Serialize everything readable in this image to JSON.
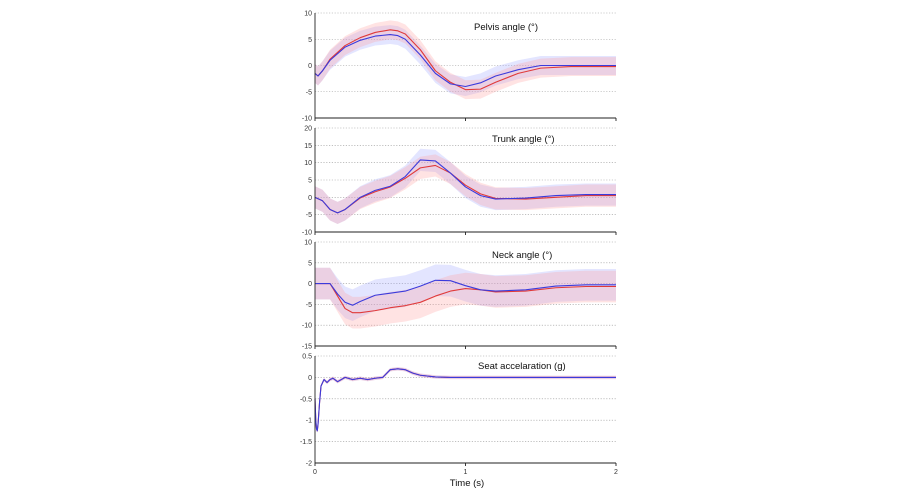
{
  "chart_data": {
    "type": "line",
    "xlabel": "Time (s)",
    "xlim": [
      0,
      2
    ],
    "xticks": [
      "0",
      "1",
      "2"
    ],
    "colors": {
      "blue": "#3b3bdc",
      "red": "#e03a3a",
      "blue_band": "#9aa3ff",
      "red_band": "#ff9c9c",
      "grid": "#9a9a9a",
      "axis": "#222222"
    },
    "panels": [
      {
        "title": "Pelvis angle (°)",
        "ylim": [
          -10,
          10
        ],
        "yticks": [
          "-10",
          "-5",
          "0",
          "5",
          "10"
        ],
        "yvals": [
          -10,
          -5,
          0,
          5,
          10
        ],
        "band": 1.8,
        "series": [
          {
            "color_key": "blue",
            "x": [
              0,
              0.02,
              0.05,
              0.1,
              0.2,
              0.3,
              0.4,
              0.5,
              0.55,
              0.6,
              0.7,
              0.8,
              0.9,
              1.0,
              1.1,
              1.2,
              1.35,
              1.5,
              1.7,
              2.0
            ],
            "y": [
              -1.5,
              -2.0,
              -1.0,
              1.0,
              3.5,
              4.8,
              5.6,
              5.9,
              5.7,
              5.0,
              2.0,
              -1.5,
              -3.5,
              -4.0,
              -3.3,
              -2.0,
              -0.8,
              0.0,
              0.0,
              0.0
            ]
          },
          {
            "color_key": "red",
            "x": [
              0,
              0.02,
              0.05,
              0.1,
              0.2,
              0.3,
              0.4,
              0.5,
              0.55,
              0.6,
              0.7,
              0.8,
              0.9,
              1.0,
              1.1,
              1.2,
              1.35,
              1.5,
              1.7,
              2.0
            ],
            "y": [
              -1.5,
              -2.0,
              -1.0,
              1.2,
              3.8,
              5.3,
              6.3,
              6.8,
              6.6,
              6.0,
              3.0,
              -1.0,
              -3.2,
              -4.6,
              -4.5,
              -3.2,
              -1.5,
              -0.5,
              -0.2,
              -0.2
            ]
          }
        ]
      },
      {
        "title": "Trunk angle (°)",
        "ylim": [
          -10,
          20
        ],
        "yticks": [
          "-10",
          "-5",
          "0",
          "5",
          "10",
          "15",
          "20"
        ],
        "yvals": [
          -10,
          -5,
          0,
          5,
          10,
          15,
          20
        ],
        "band": 3.2,
        "series": [
          {
            "color_key": "blue",
            "x": [
              0,
              0.05,
              0.1,
              0.15,
              0.2,
              0.3,
              0.4,
              0.5,
              0.6,
              0.7,
              0.8,
              0.9,
              1.0,
              1.1,
              1.2,
              1.4,
              1.6,
              1.8,
              2.0
            ],
            "y": [
              0,
              -1.0,
              -3.5,
              -4.5,
              -3.5,
              0,
              2.0,
              3.2,
              6.0,
              10.8,
              10.5,
              7.0,
              3.0,
              0.5,
              -0.5,
              -0.2,
              0.5,
              0.8,
              0.8
            ]
          },
          {
            "color_key": "red",
            "x": [
              0,
              0.05,
              0.1,
              0.15,
              0.2,
              0.3,
              0.4,
              0.5,
              0.6,
              0.7,
              0.8,
              0.9,
              1.0,
              1.1,
              1.2,
              1.4,
              1.6,
              1.8,
              2.0
            ],
            "y": [
              0,
              -1.0,
              -3.5,
              -4.5,
              -3.5,
              -0.2,
              1.6,
              3.0,
              5.5,
              8.5,
              9.2,
              7.0,
              3.5,
              1.0,
              -0.3,
              -0.5,
              0.0,
              0.5,
              0.5
            ]
          }
        ]
      },
      {
        "title": "Neck angle (°)",
        "ylim": [
          -15,
          10
        ],
        "yticks": [
          "-15",
          "-10",
          "-5",
          "0",
          "5",
          "10"
        ],
        "yvals": [
          -15,
          -10,
          -5,
          0,
          5,
          10
        ],
        "band": 3.8,
        "series": [
          {
            "color_key": "blue",
            "x": [
              0,
              0.1,
              0.15,
              0.2,
              0.25,
              0.3,
              0.4,
              0.5,
              0.6,
              0.7,
              0.8,
              0.9,
              1.0,
              1.1,
              1.2,
              1.4,
              1.6,
              1.8,
              2.0
            ],
            "y": [
              0,
              0,
              -2.5,
              -4.5,
              -5.2,
              -4.3,
              -2.8,
              -2.3,
              -1.8,
              -0.6,
              0.8,
              0.7,
              -0.5,
              -1.5,
              -1.8,
              -1.5,
              -0.6,
              -0.3,
              -0.3
            ]
          },
          {
            "color_key": "red",
            "x": [
              0,
              0.1,
              0.15,
              0.2,
              0.25,
              0.3,
              0.4,
              0.5,
              0.6,
              0.7,
              0.8,
              0.9,
              1.0,
              1.1,
              1.2,
              1.4,
              1.6,
              1.8,
              2.0
            ],
            "y": [
              0,
              0,
              -3.0,
              -6.0,
              -7.0,
              -7.0,
              -6.5,
              -5.8,
              -5.3,
              -4.5,
              -3.0,
              -1.8,
              -1.2,
              -1.5,
              -2.0,
              -1.8,
              -1.0,
              -0.7,
              -0.7
            ]
          }
        ]
      },
      {
        "title": "Seat accelaration (g)",
        "ylim": [
          -2,
          0.5
        ],
        "yticks": [
          "-2",
          "-1.5",
          "-1",
          "-0.5",
          "0",
          "0.5"
        ],
        "yvals": [
          -2,
          -1.5,
          -1,
          -0.5,
          0,
          0.5
        ],
        "band": 0.04,
        "series": [
          {
            "color_key": "blue",
            "x": [
              0,
              0.005,
              0.01,
              0.015,
              0.02,
              0.03,
              0.04,
              0.06,
              0.08,
              0.1,
              0.12,
              0.15,
              0.2,
              0.25,
              0.3,
              0.35,
              0.4,
              0.45,
              0.5,
              0.55,
              0.6,
              0.65,
              0.7,
              0.8,
              0.9,
              1.0,
              1.5,
              2.0
            ],
            "y": [
              -0.5,
              -1.0,
              -1.2,
              -1.25,
              -1.1,
              -0.6,
              -0.2,
              -0.05,
              -0.12,
              -0.05,
              -0.02,
              -0.1,
              0.0,
              -0.05,
              -0.02,
              -0.05,
              -0.02,
              0.0,
              0.18,
              0.2,
              0.18,
              0.1,
              0.05,
              0.01,
              0.0,
              0.0,
              0.0,
              0.0
            ]
          },
          {
            "color_key": "red",
            "x": [
              0,
              0.005,
              0.01,
              0.015,
              0.02,
              0.03,
              0.04,
              0.06,
              0.08,
              0.1,
              0.12,
              0.15,
              0.2,
              0.25,
              0.3,
              0.35,
              0.4,
              0.45,
              0.5,
              0.55,
              0.6,
              0.65,
              0.7,
              0.8,
              0.9,
              1.0,
              1.5,
              2.0
            ],
            "y": [
              -0.5,
              -1.0,
              -1.2,
              -1.25,
              -1.1,
              -0.6,
              -0.2,
              -0.05,
              -0.12,
              -0.05,
              -0.02,
              -0.1,
              0.0,
              -0.05,
              -0.02,
              -0.05,
              -0.02,
              0.0,
              0.18,
              0.2,
              0.18,
              0.1,
              0.05,
              0.01,
              0.0,
              0.0,
              0.0,
              0.0
            ]
          }
        ]
      }
    ]
  }
}
